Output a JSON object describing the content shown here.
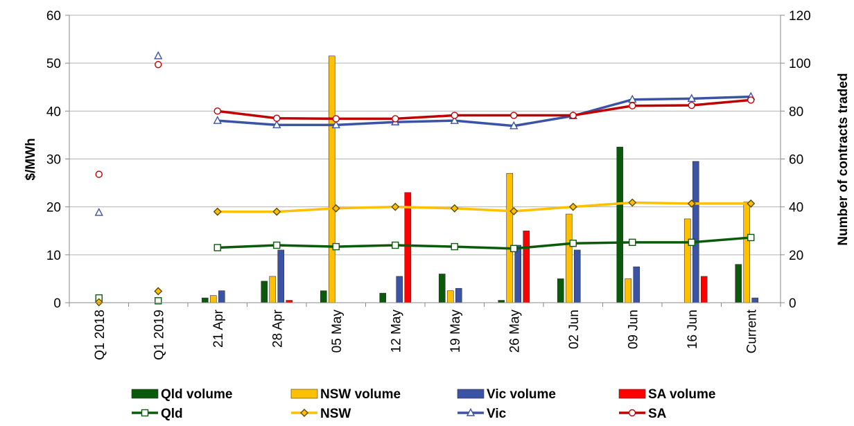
{
  "chart_data": {
    "type": "bar+line",
    "categories": [
      "Q1 2018",
      "Q1 2019",
      "21 Apr",
      "28 Apr",
      "05 May",
      "12 May",
      "19 May",
      "26 May",
      "02 Jun",
      "09 Jun",
      "16 Jun",
      "Current"
    ],
    "ylabel_left": "$/MWh",
    "ylabel_right": "Number of contracts traded",
    "ylim_left": [
      0,
      60
    ],
    "yticks_left": [
      0,
      10,
      20,
      30,
      40,
      50,
      60
    ],
    "ylim_right": [
      0,
      120
    ],
    "yticks_right": [
      0,
      20,
      40,
      60,
      80,
      100,
      120
    ],
    "grid": true,
    "legend_position": "bottom",
    "bar_series": [
      {
        "name": "Qld volume",
        "color": "#0b5a0b",
        "values": [
          0,
          0,
          2,
          9,
          5,
          4,
          12,
          1,
          10,
          65,
          0,
          16
        ]
      },
      {
        "name": "NSW volume",
        "color": "#ffc000",
        "values": [
          0,
          0,
          3,
          11,
          103,
          0,
          5,
          54,
          37,
          10,
          35,
          42
        ]
      },
      {
        "name": "Vic volume",
        "color": "#3b53a4",
        "values": [
          0,
          0,
          5,
          22,
          0,
          11,
          6,
          24,
          22,
          15,
          59,
          2
        ]
      },
      {
        "name": "SA volume",
        "color": "#ff0000",
        "values": [
          0,
          0,
          0,
          1,
          0,
          46,
          0,
          30,
          0,
          0,
          11,
          0
        ]
      }
    ],
    "line_series": [
      {
        "name": "Qld",
        "color": "#0b5a0b",
        "marker": "square",
        "values": [
          1,
          0.4,
          11.5,
          12,
          11.7,
          12,
          11.7,
          11.3,
          12.4,
          12.6,
          12.6,
          13.6
        ],
        "connected_from": 2
      },
      {
        "name": "NSW",
        "color": "#ffc000",
        "marker": "diamond",
        "values": [
          0.1,
          2.4,
          19,
          19,
          19.7,
          20,
          19.7,
          19.1,
          20,
          20.9,
          20.7,
          20.7
        ],
        "connected_from": 2
      },
      {
        "name": "Vic",
        "color": "#3b53a4",
        "marker": "triangle",
        "values": [
          18.8,
          51.5,
          38,
          37.1,
          37.1,
          37.7,
          38,
          36.9,
          39,
          42.4,
          42.6,
          43
        ],
        "connected_from": 2
      },
      {
        "name": "SA",
        "color": "#c00000",
        "marker": "circle",
        "values": [
          26.8,
          49.7,
          40,
          38.5,
          38.4,
          38.4,
          39.1,
          39.1,
          39.1,
          41.1,
          41.2,
          42.3
        ],
        "connected_from": 2
      }
    ]
  }
}
